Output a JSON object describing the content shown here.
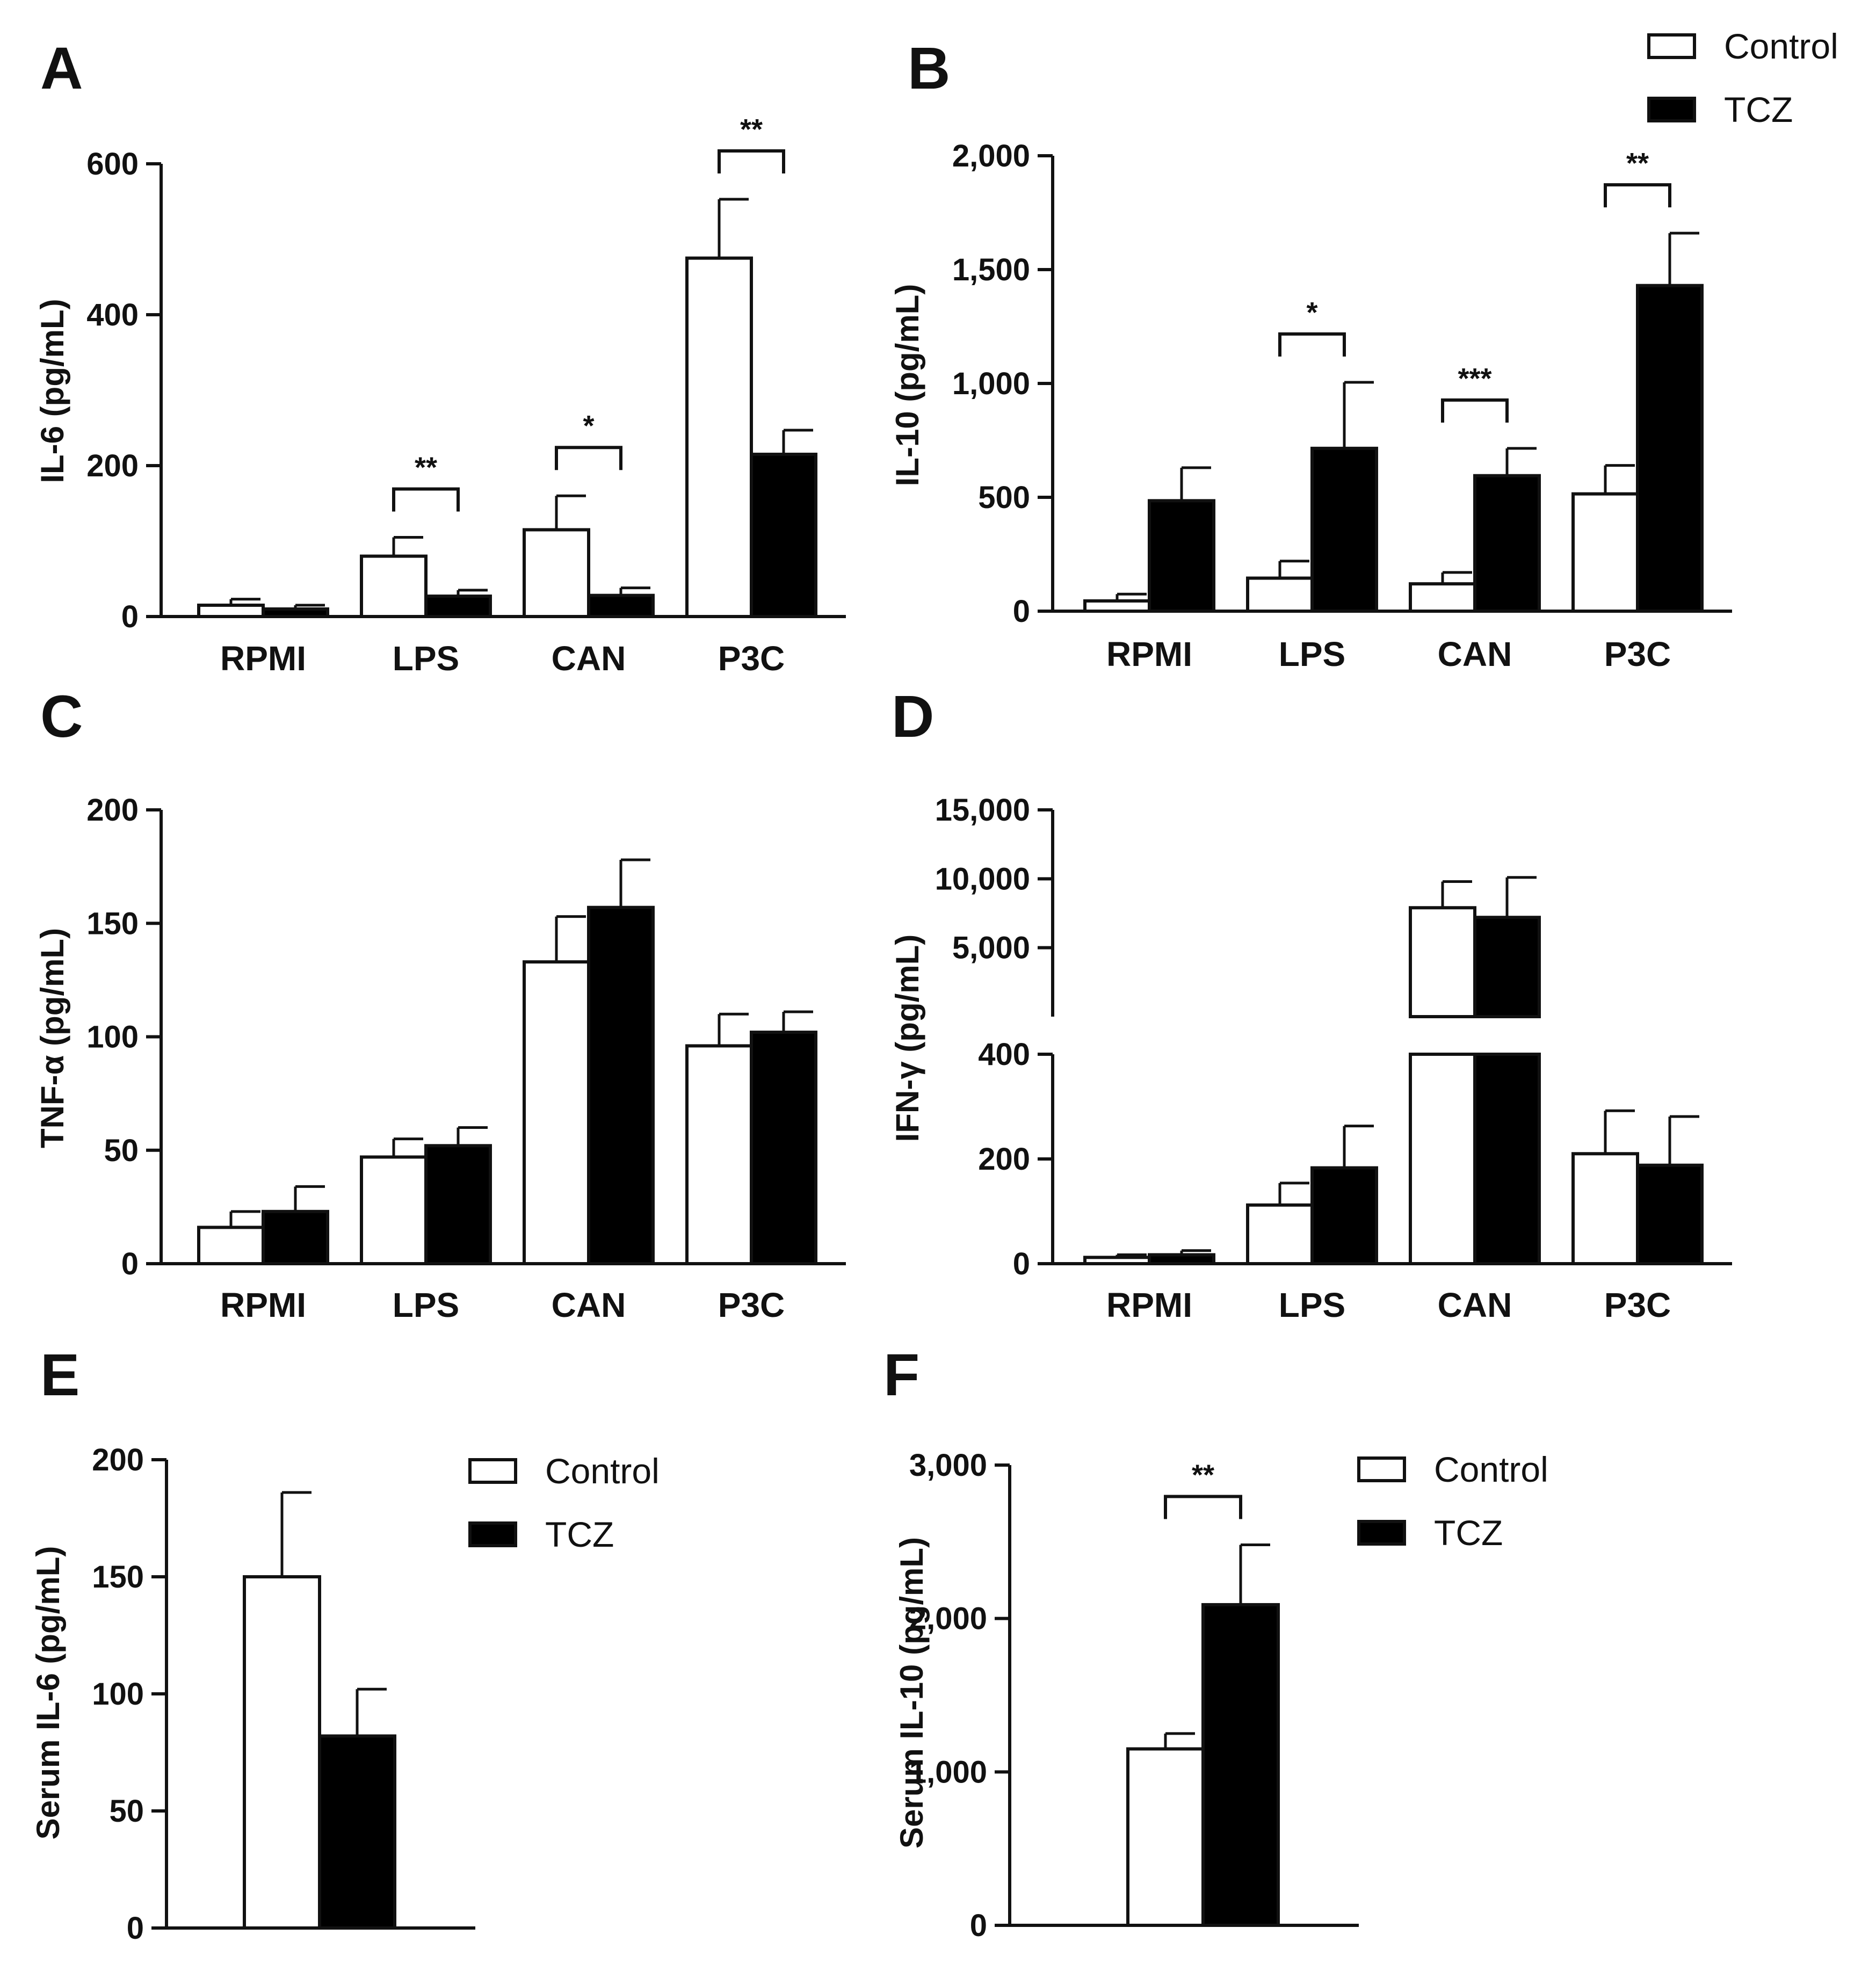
{
  "legend": {
    "control": "Control",
    "tcz": "TCZ"
  },
  "colors": {
    "control_fill": "#ffffff",
    "tcz_fill": "#000000",
    "stroke": "#111111"
  },
  "chart_data": [
    {
      "panel": "A",
      "type": "bar",
      "ylabel": "IL-6 (pg/mL)",
      "categories": [
        "RPMI",
        "LPS",
        "CAN",
        "P3C"
      ],
      "ylim": [
        0,
        600
      ],
      "yticks": [
        0,
        200,
        400,
        600
      ],
      "ytick_labels": [
        "0",
        "200",
        "400",
        "600"
      ],
      "series": [
        {
          "name": "Control",
          "values": [
            15,
            80,
            115,
            475
          ],
          "errors": [
            8,
            25,
            45,
            78
          ]
        },
        {
          "name": "TCZ",
          "values": [
            10,
            27,
            28,
            215
          ],
          "errors": [
            5,
            8,
            10,
            32
          ]
        }
      ],
      "significance": [
        {
          "category": "LPS",
          "label": "**"
        },
        {
          "category": "CAN",
          "label": "*"
        },
        {
          "category": "P3C",
          "label": "**"
        }
      ]
    },
    {
      "panel": "B",
      "type": "bar",
      "ylabel": "IL-10 (pg/mL)",
      "categories": [
        "RPMI",
        "LPS",
        "CAN",
        "P3C"
      ],
      "ylim": [
        0,
        2000
      ],
      "yticks": [
        0,
        500,
        1000,
        1500,
        2000
      ],
      "ytick_labels": [
        "0",
        "500",
        "1,000",
        "1,500",
        "2,000"
      ],
      "series": [
        {
          "name": "Control",
          "values": [
            45,
            145,
            120,
            515
          ],
          "errors": [
            30,
            75,
            50,
            125
          ]
        },
        {
          "name": "TCZ",
          "values": [
            485,
            715,
            595,
            1430
          ],
          "errors": [
            145,
            290,
            120,
            230
          ]
        }
      ],
      "significance": [
        {
          "category": "LPS",
          "label": "*"
        },
        {
          "category": "CAN",
          "label": "***"
        },
        {
          "category": "P3C",
          "label": "**"
        }
      ]
    },
    {
      "panel": "C",
      "type": "bar",
      "ylabel": "TNF-α (pg/mL)",
      "categories": [
        "RPMI",
        "LPS",
        "CAN",
        "P3C"
      ],
      "ylim": [
        0,
        200
      ],
      "yticks": [
        0,
        50,
        100,
        150,
        200
      ],
      "ytick_labels": [
        "0",
        "50",
        "100",
        "150",
        "200"
      ],
      "series": [
        {
          "name": "Control",
          "values": [
            16,
            47,
            133,
            96
          ],
          "errors": [
            7,
            8,
            20,
            14
          ]
        },
        {
          "name": "TCZ",
          "values": [
            23,
            52,
            157,
            102
          ],
          "errors": [
            11,
            8,
            21,
            9
          ]
        }
      ],
      "significance": []
    },
    {
      "panel": "D",
      "type": "bar",
      "ylabel": "IFN-γ (pg/mL)",
      "categories": [
        "RPMI",
        "LPS",
        "CAN",
        "P3C"
      ],
      "y_broken": true,
      "ylim_lower": [
        0,
        400
      ],
      "ylim_upper": [
        400,
        15000
      ],
      "yticks_lower": [
        0,
        200,
        400
      ],
      "ytick_labels_lower": [
        "0",
        "200",
        "400"
      ],
      "yticks_upper": [
        5000,
        10000,
        15000
      ],
      "ytick_labels_upper": [
        "5,000",
        "10,000",
        "15,000"
      ],
      "series": [
        {
          "name": "Control",
          "values": [
            12,
            112,
            7900,
            210
          ],
          "errors": [
            5,
            42,
            1900,
            82
          ]
        },
        {
          "name": "TCZ",
          "values": [
            17,
            183,
            7200,
            188
          ],
          "errors": [
            8,
            80,
            2900,
            93
          ]
        }
      ],
      "significance": []
    },
    {
      "panel": "E",
      "type": "bar",
      "ylabel": "Serum IL-6 (pg/mL)",
      "categories": [
        ""
      ],
      "ylim": [
        0,
        200
      ],
      "yticks": [
        0,
        50,
        100,
        150,
        200
      ],
      "ytick_labels": [
        "0",
        "50",
        "100",
        "150",
        "200"
      ],
      "series": [
        {
          "name": "Control",
          "values": [
            150
          ],
          "errors": [
            36
          ]
        },
        {
          "name": "TCZ",
          "values": [
            82
          ],
          "errors": [
            20
          ]
        }
      ],
      "significance": []
    },
    {
      "panel": "F",
      "type": "bar",
      "ylabel": "Serum IL-10 (pg/mL)",
      "categories": [
        ""
      ],
      "ylim": [
        0,
        3000
      ],
      "yticks": [
        0,
        1000,
        2000,
        3000
      ],
      "ytick_labels": [
        "0",
        "1,000",
        "2,000",
        "3,000"
      ],
      "series": [
        {
          "name": "Control",
          "values": [
            1150
          ],
          "errors": [
            100
          ]
        },
        {
          "name": "TCZ",
          "values": [
            2090
          ],
          "errors": [
            390
          ]
        }
      ],
      "significance": [
        {
          "category": "",
          "label": "**"
        }
      ]
    }
  ]
}
